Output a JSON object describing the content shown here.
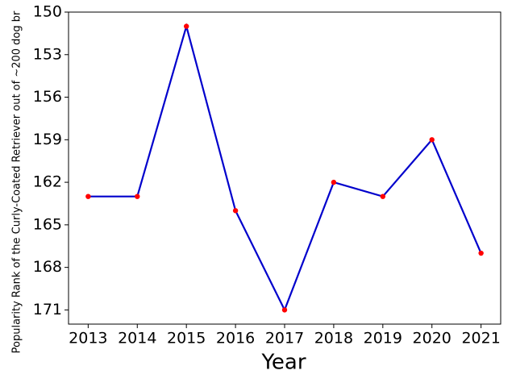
{
  "chart_data": {
    "type": "line",
    "xlabel": "Year",
    "ylabel": "Popularity Rank of the Curly-Coated Retriever out of ~200 dog br",
    "x": [
      2013,
      2014,
      2015,
      2016,
      2017,
      2018,
      2019,
      2020,
      2021
    ],
    "series": [
      {
        "color": "#0000cc",
        "marker_color": "red",
        "values": [
          163,
          163,
          151,
          164,
          171,
          162,
          163,
          159,
          167
        ]
      }
    ],
    "xlim": [
      2012.6,
      2021.4
    ],
    "xticks": [
      2013,
      2014,
      2015,
      2016,
      2017,
      2018,
      2019,
      2020,
      2021
    ],
    "ylim": [
      172,
      150
    ],
    "yticks": [
      150,
      153,
      156,
      159,
      162,
      165,
      168,
      171
    ]
  }
}
